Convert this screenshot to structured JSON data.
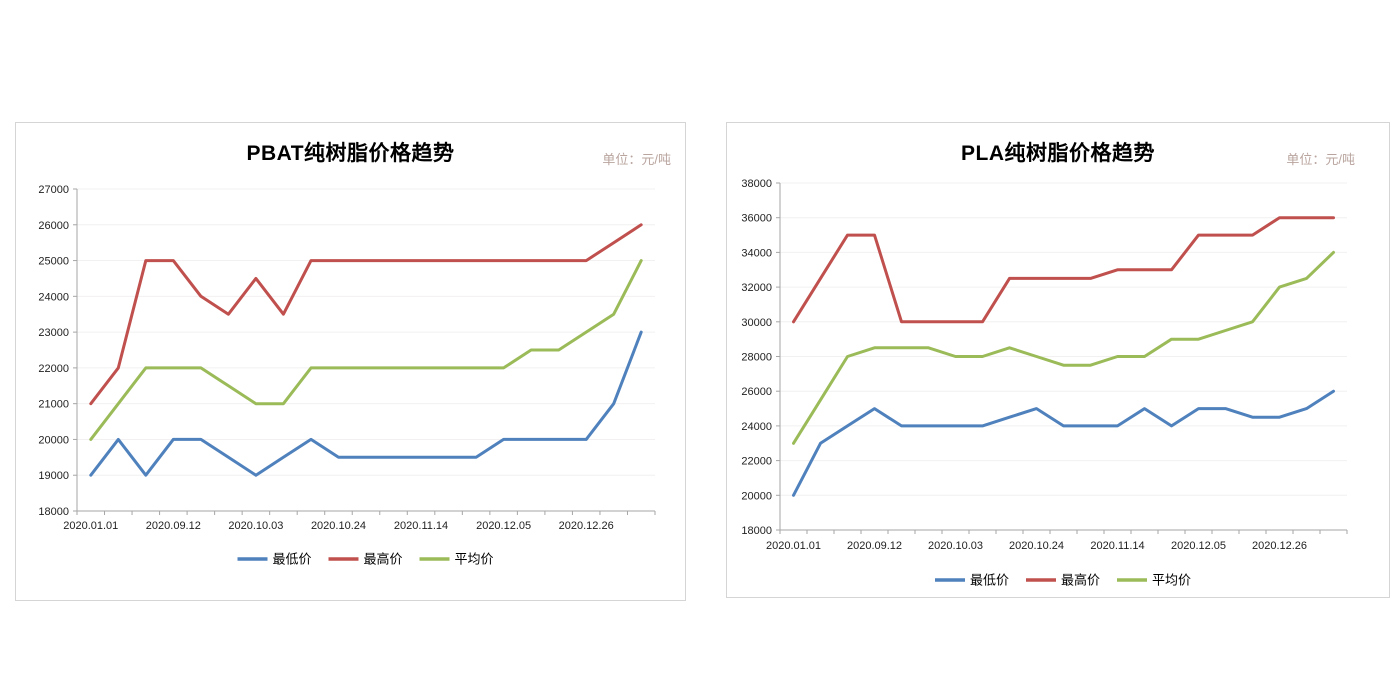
{
  "styles": {
    "background": "#ffffff",
    "card_border_color": "#d5d5d5",
    "axis_color": "#a6a6a6",
    "grid_color": "#f2f0f0",
    "tick_label_color": "#1f1f1f",
    "title_color": "#000000",
    "unit_text_color": "#b9a49e",
    "min_color": "#4f81bd",
    "max_color": "#c0504d",
    "avg_color": "#9bbb59"
  },
  "chart_data": [
    {
      "type": "line",
      "title": "PBAT纯树脂价格趋势",
      "unit_label": "单位：元/吨",
      "x_tick_labels": [
        "2020.01.01",
        "2020.09.12",
        "2020.10.03",
        "2020.10.24",
        "2020.11.14",
        "2020.12.05",
        "2020.12.26"
      ],
      "x_label_every": 3,
      "n_points": 21,
      "ylim": [
        18000,
        27000
      ],
      "y_step": 1000,
      "grid": true,
      "legend_position": "bottom",
      "series": [
        {
          "name": "最低价",
          "color": "#4f81bd",
          "values": [
            19000,
            20000,
            19000,
            20000,
            20000,
            19500,
            19000,
            19500,
            20000,
            19500,
            19500,
            19500,
            19500,
            19500,
            19500,
            20000,
            20000,
            20000,
            20000,
            21000,
            23000
          ]
        },
        {
          "name": "最高价",
          "color": "#c0504d",
          "values": [
            21000,
            22000,
            25000,
            25000,
            24000,
            23500,
            24500,
            23500,
            25000,
            25000,
            25000,
            25000,
            25000,
            25000,
            25000,
            25000,
            25000,
            25000,
            25000,
            25500,
            26000
          ]
        },
        {
          "name": "平均价",
          "color": "#9bbb59",
          "values": [
            20000,
            21000,
            22000,
            22000,
            22000,
            21500,
            21000,
            21000,
            22000,
            22000,
            22000,
            22000,
            22000,
            22000,
            22000,
            22000,
            22500,
            22500,
            23000,
            23500,
            25000
          ]
        }
      ]
    },
    {
      "type": "line",
      "title": "PLA纯树脂价格趋势",
      "unit_label": "单位：元/吨",
      "x_tick_labels": [
        "2020.01.01",
        "2020.09.12",
        "2020.10.03",
        "2020.10.24",
        "2020.11.14",
        "2020.12.05",
        "2020.12.26"
      ],
      "x_label_every": 3,
      "n_points": 21,
      "ylim": [
        18000,
        38000
      ],
      "y_step": 2000,
      "grid": true,
      "legend_position": "bottom",
      "series": [
        {
          "name": "最低价",
          "color": "#4f81bd",
          "values": [
            20000,
            23000,
            24000,
            25000,
            24000,
            24000,
            24000,
            24000,
            24500,
            25000,
            24000,
            24000,
            24000,
            25000,
            24000,
            25000,
            25000,
            24500,
            24500,
            25000,
            26000
          ]
        },
        {
          "name": "最高价",
          "color": "#c0504d",
          "values": [
            30000,
            32500,
            35000,
            35000,
            30000,
            30000,
            30000,
            30000,
            32500,
            32500,
            32500,
            32500,
            33000,
            33000,
            33000,
            35000,
            35000,
            35000,
            36000,
            36000,
            36000
          ]
        },
        {
          "name": "平均价",
          "color": "#9bbb59",
          "values": [
            23000,
            25500,
            28000,
            28500,
            28500,
            28500,
            28000,
            28000,
            28500,
            28000,
            27500,
            27500,
            28000,
            28000,
            29000,
            29000,
            29500,
            30000,
            32000,
            32500,
            34000
          ]
        }
      ]
    }
  ]
}
